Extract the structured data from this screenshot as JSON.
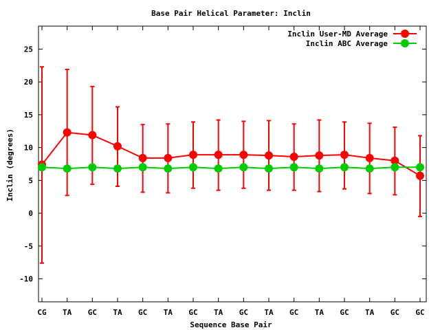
{
  "chart_data": {
    "type": "line",
    "title": "Base Pair Helical Parameter: Inclin",
    "xlabel": "Sequence Base Pair",
    "ylabel": "Inclin (degrees)",
    "categories": [
      "CG",
      "TA",
      "GC",
      "TA",
      "GC",
      "TA",
      "GC",
      "TA",
      "GC",
      "TA",
      "GC",
      "TA",
      "GC",
      "TA",
      "GC",
      "GC"
    ],
    "ylim": [
      -13.5,
      28.5
    ],
    "yticks": [
      -10,
      -5,
      0,
      5,
      10,
      15,
      20,
      25
    ],
    "ytick_labels": [
      "-10",
      "-5",
      "0",
      "5",
      "10",
      "15",
      "20",
      "25"
    ],
    "grid": false,
    "legend_position": "top-right",
    "series": [
      {
        "name": "Inclin User-MD Average",
        "color": "#ff0000",
        "values": [
          7.4,
          12.3,
          11.9,
          10.2,
          8.4,
          8.4,
          8.9,
          8.9,
          8.9,
          8.8,
          8.6,
          8.8,
          8.9,
          8.4,
          8.0,
          5.7
        ],
        "error_low": [
          -7.6,
          2.7,
          4.4,
          4.1,
          3.2,
          3.1,
          3.8,
          3.5,
          3.8,
          3.5,
          3.5,
          3.3,
          3.7,
          3.0,
          2.8,
          -0.5
        ],
        "error_high": [
          22.3,
          21.9,
          19.3,
          16.2,
          13.5,
          13.6,
          13.9,
          14.2,
          14.0,
          14.1,
          13.6,
          14.2,
          13.9,
          13.7,
          13.1,
          11.8
        ]
      },
      {
        "name": "Inclin ABC Average",
        "color": "#00cc00",
        "values": [
          7.0,
          6.8,
          7.0,
          6.8,
          7.0,
          6.8,
          7.0,
          6.8,
          7.0,
          6.8,
          7.0,
          6.8,
          7.0,
          6.8,
          7.0,
          7.0
        ]
      }
    ]
  }
}
